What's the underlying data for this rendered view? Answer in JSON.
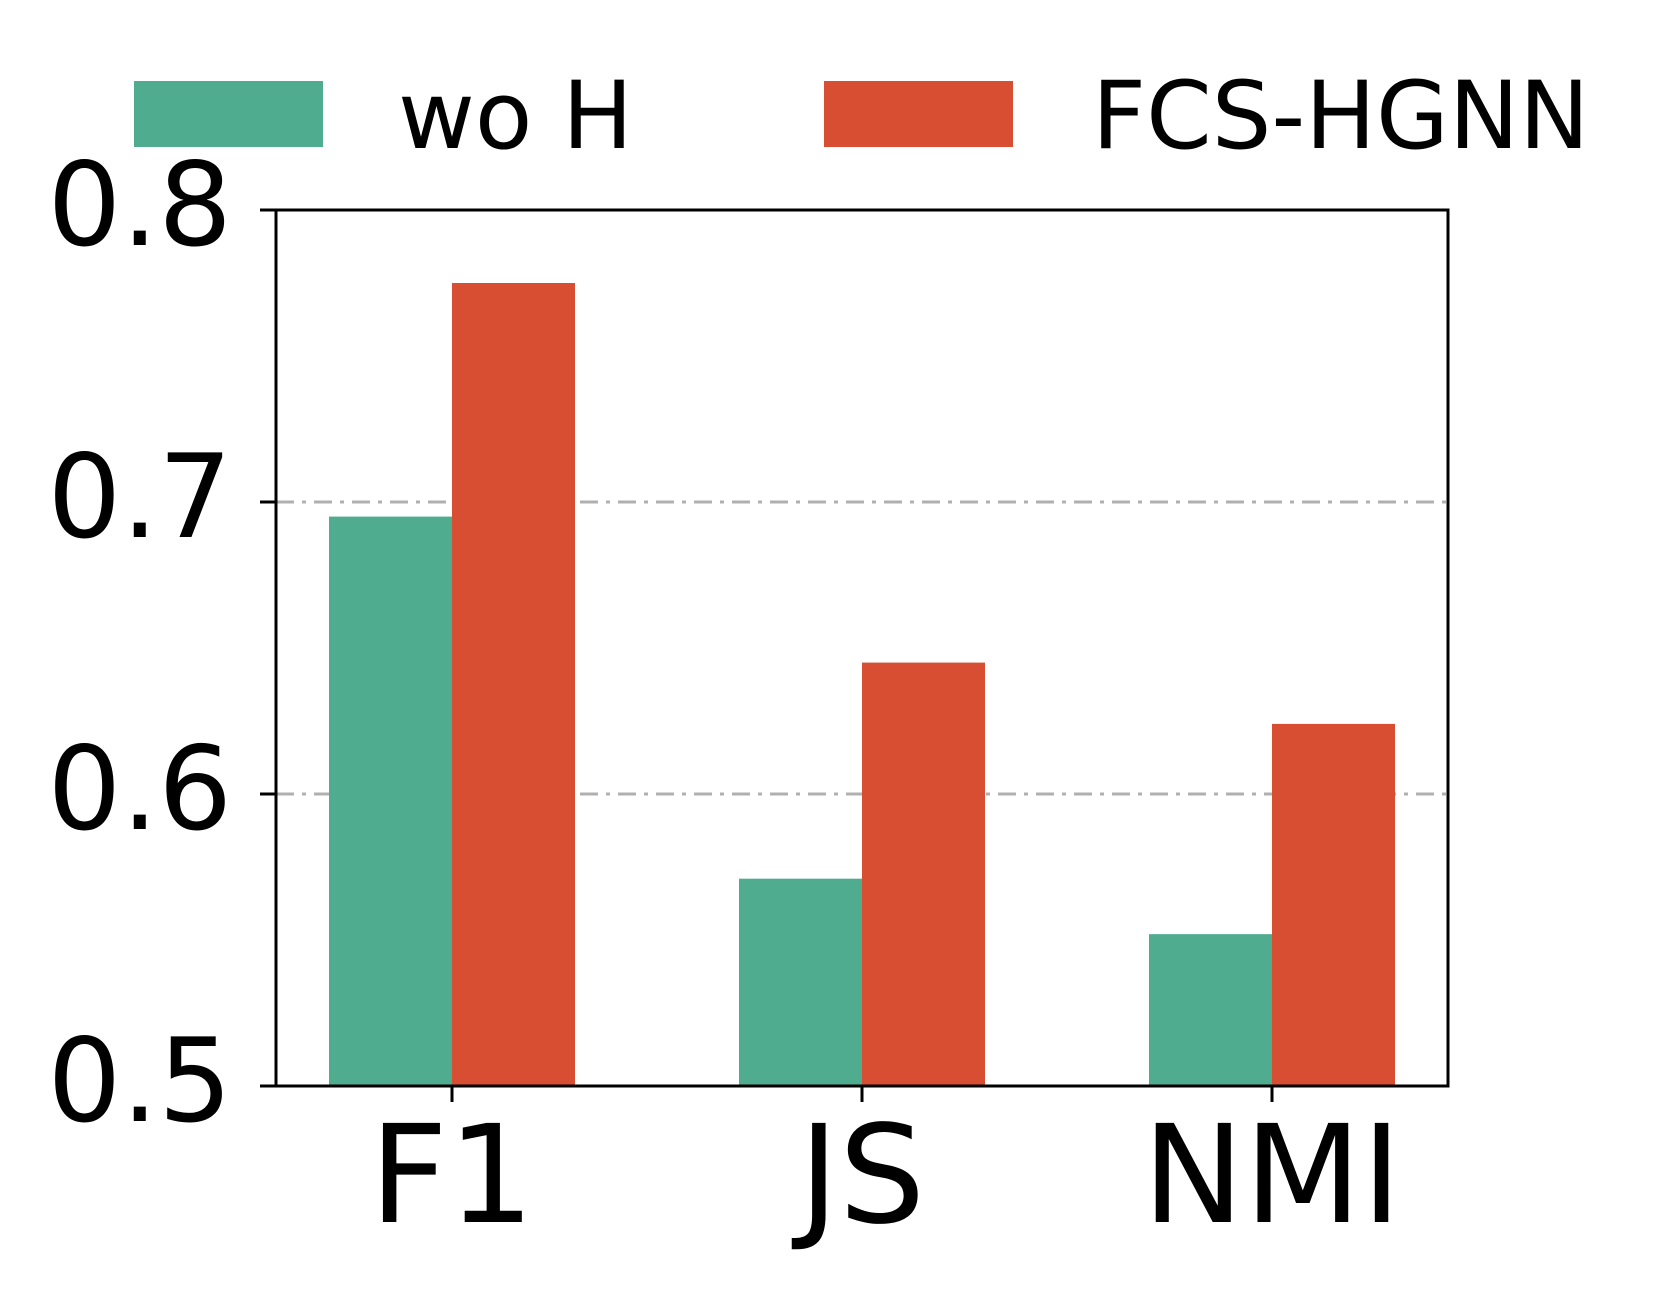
{
  "chart_data": {
    "type": "bar",
    "categories": [
      "F1",
      "JS",
      "NMI"
    ],
    "series": [
      {
        "name": "wo H",
        "values": [
          0.695,
          0.571,
          0.552
        ],
        "color": "#4fac8f"
      },
      {
        "name": "FCS-HGNN",
        "values": [
          0.775,
          0.645,
          0.624
        ],
        "color": "#d84e33"
      }
    ],
    "ylim": [
      0.5,
      0.8
    ],
    "yticks": [
      "0.5",
      "0.6",
      "0.7",
      "0.8"
    ],
    "grid": "horizontal dash-dot at y ticks",
    "gridline_color": "#b0b0b0",
    "legend": "top, outside plot, 2 columns"
  }
}
